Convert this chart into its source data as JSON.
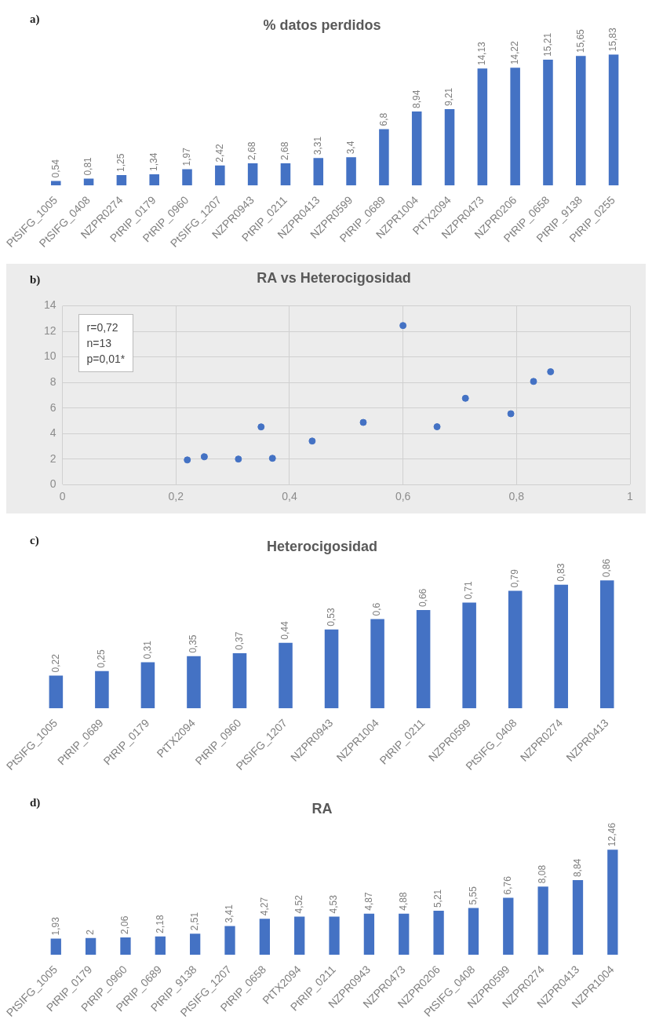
{
  "chart_data": [
    {
      "type": "bar",
      "title": "% datos perdidos",
      "annotations": [
        "a)"
      ],
      "tick_labels": "x",
      "color": "#4472c4",
      "categories": [
        "PtSIFG_1005",
        "PtSIFG_0408",
        "NZPR0274",
        "PtRIP_0179",
        "PtRIP_0960",
        "PtSIFG_1207",
        "NZPR0943",
        "PtRIP_0211",
        "NZPR0413",
        "NZPR0599",
        "PtRIP_0689",
        "NZPR1004",
        "PtTX2094",
        "NZPR0473",
        "NZPR0206",
        "PtRIP_0658",
        "PtRIP_9138",
        "PtRIP_0255"
      ],
      "values": [
        0.54,
        0.81,
        1.25,
        1.34,
        1.97,
        2.42,
        2.68,
        2.68,
        3.31,
        3.4,
        6.8,
        8.94,
        9.21,
        14.13,
        14.22,
        15.21,
        15.65,
        15.83
      ],
      "value_labels": [
        "0,54",
        "0,81",
        "1,25",
        "1,34",
        "1,97",
        "2,42",
        "2,68",
        "2,68",
        "3,31",
        "3,4",
        "6,8",
        "8,94",
        "9,21",
        "14,13",
        "14,22",
        "15,21",
        "15,65",
        "15,83"
      ]
    },
    {
      "type": "scatter",
      "title": "RA vs Heterocigosidad",
      "annotations": [
        "b)",
        "r=0,72",
        "n=13",
        "p=0,01*"
      ],
      "color": "#4472c4",
      "marker": "circle",
      "grid": true,
      "x": [
        0.22,
        0.25,
        0.31,
        0.35,
        0.37,
        0.44,
        0.53,
        0.6,
        0.66,
        0.71,
        0.79,
        0.83,
        0.86
      ],
      "values": [
        1.93,
        2.18,
        2,
        4.52,
        2.06,
        3.41,
        4.87,
        12.46,
        4.53,
        6.76,
        5.55,
        8.08,
        8.84
      ],
      "xlim": [
        0,
        1
      ],
      "xticks": [
        0,
        {
          "value": 0.2,
          "label": "0,2"
        },
        {
          "value": 0.4,
          "label": "0,4"
        },
        {
          "value": 0.6,
          "label": "0,6"
        },
        {
          "value": 0.8,
          "label": "0,8"
        },
        1
      ],
      "ylim": [
        0,
        14
      ],
      "yticks": [
        0,
        2,
        4,
        6,
        8,
        10,
        12,
        14
      ]
    },
    {
      "type": "bar",
      "title": "Heterocigosidad",
      "annotations": [
        "c)"
      ],
      "tick_labels": "x",
      "color": "#4472c4",
      "categories": [
        "PtSIFG_1005",
        "PtRIP_0689",
        "PtRIP_0179",
        "PtTX2094",
        "PtRIP_0960",
        "PtSIFG_1207",
        "NZPR0943",
        "NZPR1004",
        "PtRIP_0211",
        "NZPR0599",
        "PtSIFG_0408",
        "NZPR0274",
        "NZPR0413"
      ],
      "values": [
        0.22,
        0.25,
        0.31,
        0.35,
        0.37,
        0.44,
        0.53,
        0.6,
        0.66,
        0.71,
        0.79,
        0.83,
        0.86
      ],
      "value_labels": [
        "0,22",
        "0,25",
        "0,31",
        "0,35",
        "0,37",
        "0,44",
        "0,53",
        "0,6",
        "0,66",
        "0,71",
        "0,79",
        "0,83",
        "0,86"
      ]
    },
    {
      "type": "bar",
      "title": "RA",
      "annotations": [
        "d)"
      ],
      "tick_labels": "x",
      "color": "#4472c4",
      "categories": [
        "PtSIFG_1005",
        "PtRIP_0179",
        "PtRIP_0960",
        "PtRIP_0689",
        "PtRIP_9138",
        "PtSIFG_1207",
        "PtRIP_0658",
        "PtTX2094",
        "PtRIP_0211",
        "NZPR0943",
        "NZPR0473",
        "NZPR0206",
        "PtSIFG_0408",
        "NZPR0599",
        "NZPR0274",
        "NZPR0413",
        "NZPR1004"
      ],
      "values": [
        1.93,
        2,
        2.06,
        2.18,
        2.51,
        3.41,
        4.27,
        4.52,
        4.53,
        4.87,
        4.88,
        5.21,
        5.55,
        6.76,
        8.08,
        8.84,
        12.46
      ],
      "value_labels": [
        "1,93",
        "2",
        "2,06",
        "2,18",
        "2,51",
        "3,41",
        "4,27",
        "4,52",
        "4,53",
        "4,87",
        "4,88",
        "5,21",
        "5,55",
        "6,76",
        "8,08",
        "8,84",
        "12,46"
      ]
    }
  ]
}
